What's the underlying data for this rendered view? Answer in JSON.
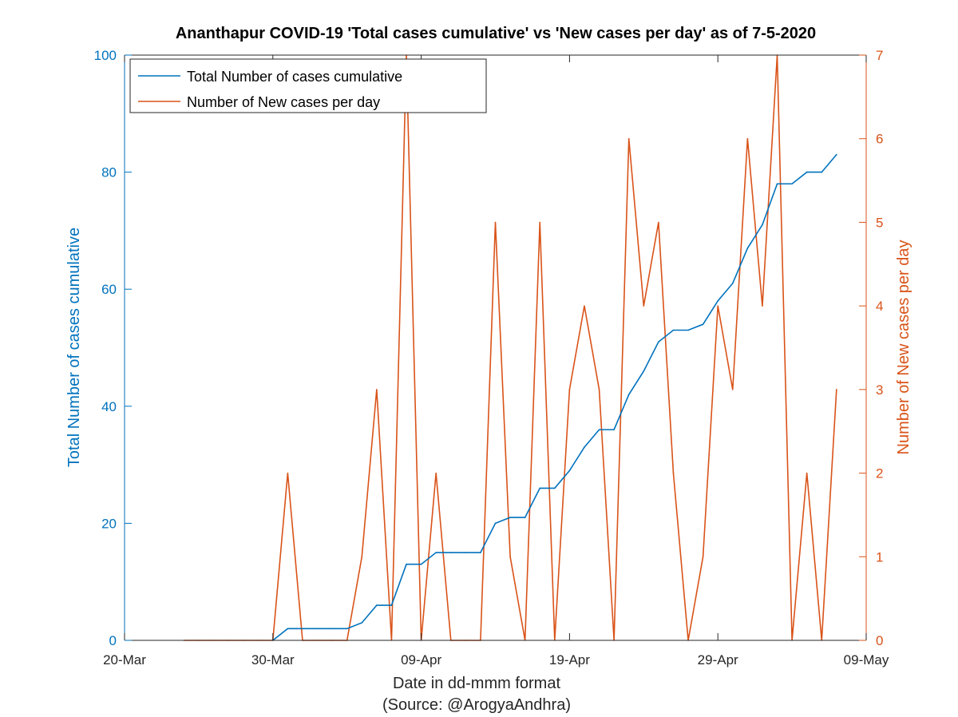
{
  "chart_data": {
    "type": "line",
    "title": "Ananthapur COVID-19 'Total cases cumulative' vs 'New cases per day' as of 7-5-2020",
    "xlabel": "Date in dd-mmm format",
    "xlabel_source": "(Source: @ArogyaAndhra)",
    "ylabel_left": "Total Number of cases cumulative",
    "ylabel_right": "Number of New cases per day",
    "x_range": [
      "2020-03-20",
      "2020-05-09"
    ],
    "x_ticks": [
      "20-Mar",
      "30-Mar",
      "09-Apr",
      "19-Apr",
      "29-Apr",
      "09-May"
    ],
    "ylim_left": [
      0,
      100
    ],
    "yticks_left": [
      "0",
      "20",
      "40",
      "60",
      "80",
      "100"
    ],
    "ylim_right": [
      0,
      7
    ],
    "yticks_right": [
      "0",
      "1",
      "2",
      "3",
      "4",
      "5",
      "6",
      "7"
    ],
    "grid": false,
    "legend_position": "top-left",
    "colors": {
      "left_axis": "#0072BD",
      "right_axis": "#D95319"
    },
    "series": [
      {
        "name": "Total Number of cases cumulative",
        "axis": "left",
        "color": "#0072BD",
        "points": [
          [
            "2020-03-30",
            0
          ],
          [
            "2020-03-31",
            2
          ],
          [
            "2020-04-01",
            2
          ],
          [
            "2020-04-02",
            2
          ],
          [
            "2020-04-03",
            2
          ],
          [
            "2020-04-04",
            2
          ],
          [
            "2020-04-05",
            3
          ],
          [
            "2020-04-06",
            6
          ],
          [
            "2020-04-07",
            6
          ],
          [
            "2020-04-08",
            13
          ],
          [
            "2020-04-09",
            13
          ],
          [
            "2020-04-10",
            15
          ],
          [
            "2020-04-11",
            15
          ],
          [
            "2020-04-12",
            15
          ],
          [
            "2020-04-13",
            15
          ],
          [
            "2020-04-14",
            20
          ],
          [
            "2020-04-15",
            21
          ],
          [
            "2020-04-16",
            21
          ],
          [
            "2020-04-17",
            26
          ],
          [
            "2020-04-18",
            26
          ],
          [
            "2020-04-19",
            29
          ],
          [
            "2020-04-20",
            33
          ],
          [
            "2020-04-21",
            36
          ],
          [
            "2020-04-22",
            36
          ],
          [
            "2020-04-23",
            42
          ],
          [
            "2020-04-24",
            46
          ],
          [
            "2020-04-25",
            51
          ],
          [
            "2020-04-26",
            53
          ],
          [
            "2020-04-27",
            53
          ],
          [
            "2020-04-28",
            54
          ],
          [
            "2020-04-29",
            58
          ],
          [
            "2020-04-30",
            61
          ],
          [
            "2020-05-01",
            67
          ],
          [
            "2020-05-02",
            71
          ],
          [
            "2020-05-03",
            78
          ],
          [
            "2020-05-04",
            78
          ],
          [
            "2020-05-05",
            80
          ],
          [
            "2020-05-06",
            80
          ],
          [
            "2020-05-07",
            83
          ]
        ]
      },
      {
        "name": "Number of New cases per day",
        "axis": "right",
        "color": "#D95319",
        "points": [
          [
            "2020-03-24",
            0
          ],
          [
            "2020-03-25",
            0
          ],
          [
            "2020-03-26",
            0
          ],
          [
            "2020-03-27",
            0
          ],
          [
            "2020-03-28",
            0
          ],
          [
            "2020-03-29",
            0
          ],
          [
            "2020-03-30",
            0
          ],
          [
            "2020-03-31",
            2
          ],
          [
            "2020-04-01",
            0
          ],
          [
            "2020-04-02",
            0
          ],
          [
            "2020-04-03",
            0
          ],
          [
            "2020-04-04",
            0
          ],
          [
            "2020-04-05",
            1
          ],
          [
            "2020-04-06",
            3
          ],
          [
            "2020-04-07",
            0
          ],
          [
            "2020-04-08",
            7
          ],
          [
            "2020-04-09",
            0
          ],
          [
            "2020-04-10",
            2
          ],
          [
            "2020-04-11",
            0
          ],
          [
            "2020-04-12",
            0
          ],
          [
            "2020-04-13",
            0
          ],
          [
            "2020-04-14",
            5
          ],
          [
            "2020-04-15",
            1
          ],
          [
            "2020-04-16",
            0
          ],
          [
            "2020-04-17",
            5
          ],
          [
            "2020-04-18",
            0
          ],
          [
            "2020-04-19",
            3
          ],
          [
            "2020-04-20",
            4
          ],
          [
            "2020-04-21",
            3
          ],
          [
            "2020-04-22",
            0
          ],
          [
            "2020-04-23",
            6
          ],
          [
            "2020-04-24",
            4
          ],
          [
            "2020-04-25",
            5
          ],
          [
            "2020-04-26",
            2
          ],
          [
            "2020-04-27",
            0
          ],
          [
            "2020-04-28",
            1
          ],
          [
            "2020-04-29",
            4
          ],
          [
            "2020-04-30",
            3
          ],
          [
            "2020-05-01",
            6
          ],
          [
            "2020-05-02",
            4
          ],
          [
            "2020-05-03",
            7
          ],
          [
            "2020-05-04",
            0
          ],
          [
            "2020-05-05",
            2
          ],
          [
            "2020-05-06",
            0
          ],
          [
            "2020-05-07",
            3
          ]
        ]
      }
    ]
  }
}
